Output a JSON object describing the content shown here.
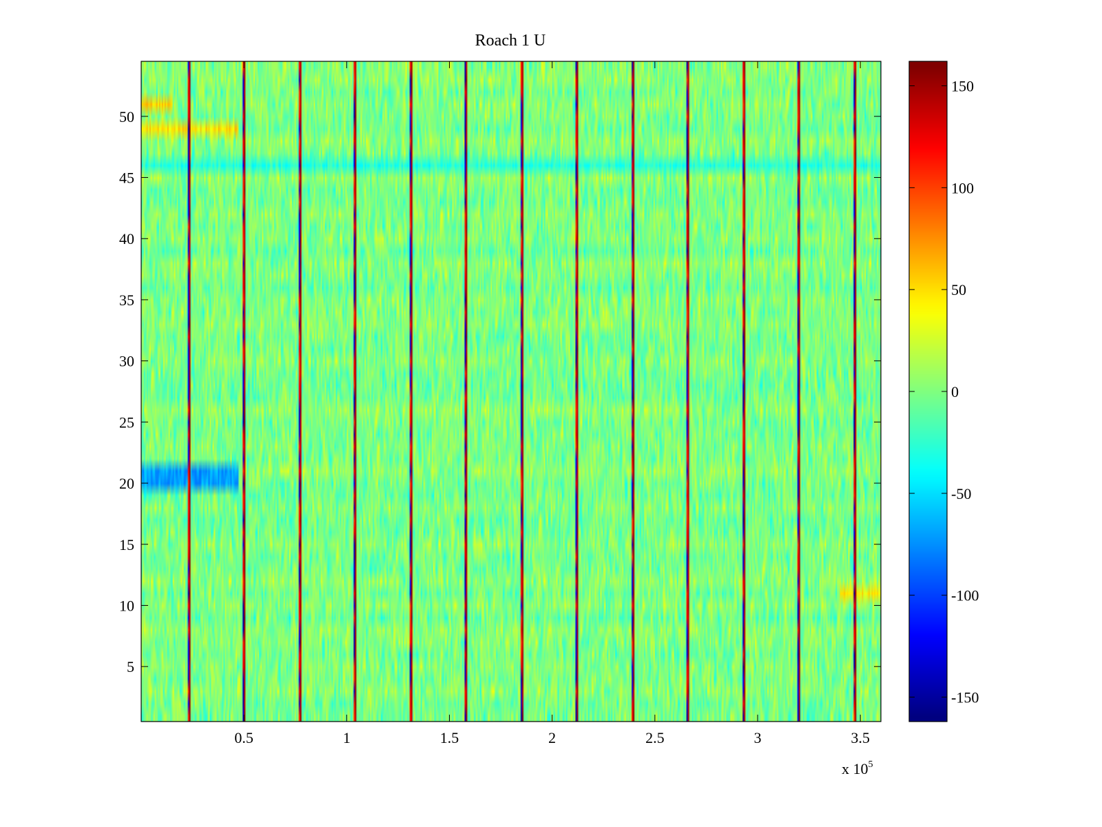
{
  "chart_data": {
    "type": "heatmap",
    "title": "Roach 1 U",
    "xlabel": "",
    "ylabel": "",
    "xlim": [
      0,
      360000
    ],
    "ylim": [
      0.5,
      54.5
    ],
    "x_scale_label": {
      "prefix": "x 10",
      "exponent": "5"
    },
    "x_ticks": [
      0.5,
      1,
      1.5,
      2,
      2.5,
      3,
      3.5
    ],
    "x_tick_labels": [
      "0.5",
      "1",
      "1.5",
      "2",
      "2.5",
      "3",
      "3.5"
    ],
    "y_ticks": [
      5,
      10,
      15,
      20,
      25,
      30,
      35,
      40,
      45,
      50
    ],
    "y_tick_labels": [
      "5",
      "10",
      "15",
      "20",
      "25",
      "30",
      "35",
      "40",
      "45",
      "50"
    ],
    "colorbar": {
      "colormap": "jet",
      "clim": [
        -162,
        162
      ],
      "ticks": [
        -150,
        -100,
        -50,
        0,
        50,
        100,
        150
      ],
      "tick_labels": [
        "-150",
        "-100",
        "-50",
        "0",
        "50",
        "100",
        "150"
      ]
    },
    "rows": 54,
    "background_value_range": [
      -40,
      40
    ],
    "periodic_spikes": {
      "x_positions": [
        23000,
        50000,
        77000,
        104000,
        131000,
        158000,
        185000,
        212000,
        239000,
        266000,
        293000,
        320000,
        347000
      ],
      "high_value": 160,
      "low_value": -150
    },
    "row_bands": [
      {
        "rows": [
          49,
          49
        ],
        "x_range": [
          0,
          47000
        ],
        "value": 50
      },
      {
        "rows": [
          51,
          51
        ],
        "x_range": [
          0,
          15000
        ],
        "value": 55
      },
      {
        "rows": [
          46,
          46
        ],
        "x_range": [
          0,
          360000
        ],
        "value": -30
      },
      {
        "rows": [
          20,
          21
        ],
        "x_range": [
          0,
          47000
        ],
        "value": -70
      },
      {
        "rows": [
          11,
          11
        ],
        "x_range": [
          340000,
          360000
        ],
        "value": 45
      }
    ],
    "colors": {
      "axes": "#000000",
      "background": "#ffffff"
    }
  }
}
